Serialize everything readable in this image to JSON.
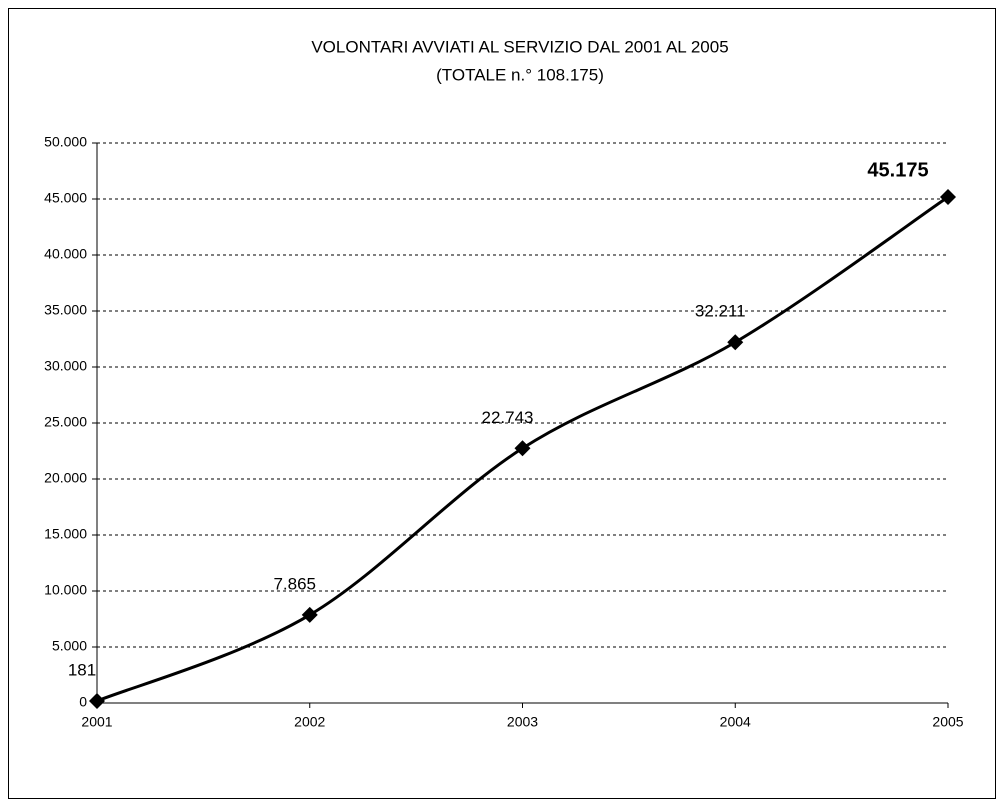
{
  "chart_data": {
    "type": "line",
    "title": "VOLONTARI AVVIATI AL SERVIZIO DAL 2001 AL 2005",
    "subtitle": "(TOTALE n.° 108.175)",
    "categories": [
      "2001",
      "2002",
      "2003",
      "2004",
      "2005"
    ],
    "values": [
      181,
      7865,
      22743,
      32211,
      45175
    ],
    "value_labels": [
      "181",
      "7.865",
      "22.743",
      "32.211",
      "45.175"
    ],
    "color": "#000000",
    "ylim": [
      0,
      50000
    ],
    "yticks": [
      0,
      {
        "value": 5000,
        "label": "5.000"
      },
      {
        "value": 10000,
        "label": "10.000"
      },
      {
        "value": 15000,
        "label": "15.000"
      },
      {
        "value": 20000,
        "label": "20.000"
      },
      {
        "value": 25000,
        "label": "25.000"
      },
      {
        "value": 30000,
        "label": "30.000"
      },
      {
        "value": 35000,
        "label": "35.000"
      },
      {
        "value": 40000,
        "label": "40.000"
      },
      {
        "value": 45000,
        "label": "45.000"
      },
      {
        "value": 50000,
        "label": "50.000"
      }
    ],
    "grid": true
  }
}
